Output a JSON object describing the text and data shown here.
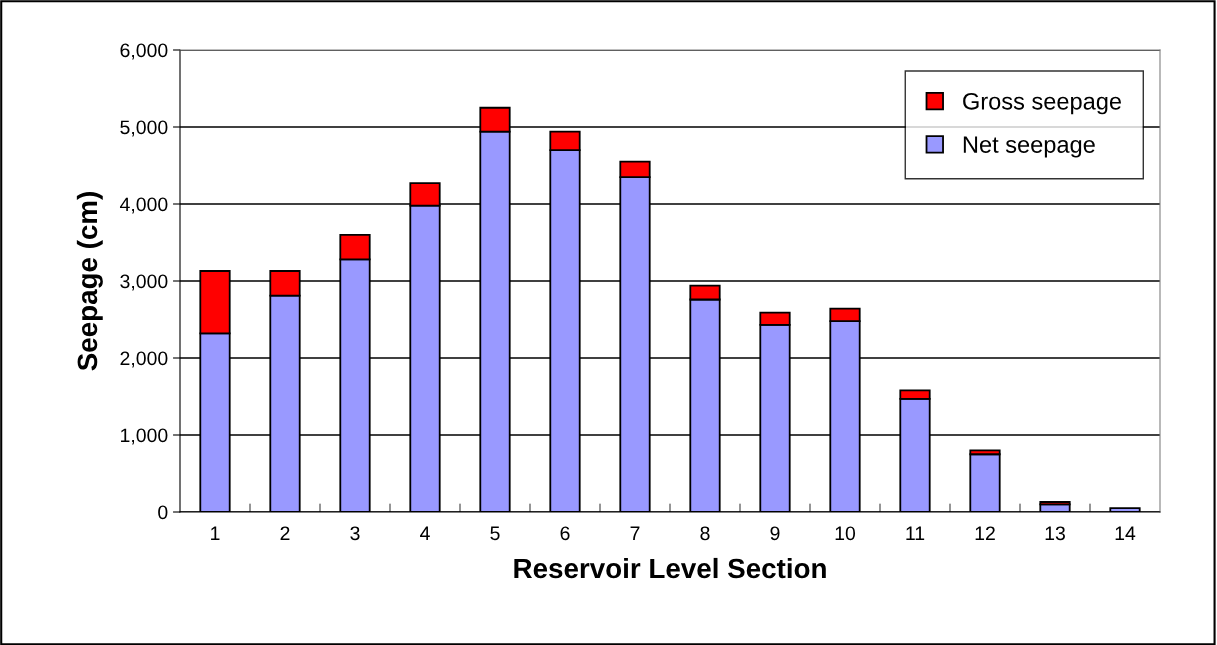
{
  "chart_data": {
    "type": "bar",
    "stacked": true,
    "xlabel": "Reservoir Level Section",
    "ylabel": "Seepage (cm)",
    "categories": [
      "1",
      "2",
      "3",
      "4",
      "5",
      "6",
      "7",
      "8",
      "9",
      "10",
      "11",
      "12",
      "13",
      "14"
    ],
    "series": [
      {
        "name": "Net seepage",
        "color": "#9999ff",
        "values": [
          2320,
          2810,
          3280,
          3980,
          4940,
          4700,
          4350,
          2760,
          2430,
          2480,
          1470,
          750,
          100,
          50
        ]
      },
      {
        "name": "Gross seepage",
        "color": "#ff0000",
        "values": [
          810,
          320,
          320,
          290,
          310,
          240,
          200,
          180,
          160,
          160,
          110,
          50,
          30,
          null
        ]
      }
    ],
    "ylim": [
      0,
      6000
    ],
    "yticks": [
      {
        "value": 0,
        "label": "0"
      },
      {
        "value": 1000,
        "label": "1,000"
      },
      {
        "value": 2000,
        "label": "2,000"
      },
      {
        "value": 3000,
        "label": "3,000"
      },
      {
        "value": 4000,
        "label": "4,000"
      },
      {
        "value": 5000,
        "label": "5,000"
      },
      {
        "value": 6000,
        "label": "6,000"
      }
    ],
    "grid": "y",
    "legend": "top right"
  }
}
